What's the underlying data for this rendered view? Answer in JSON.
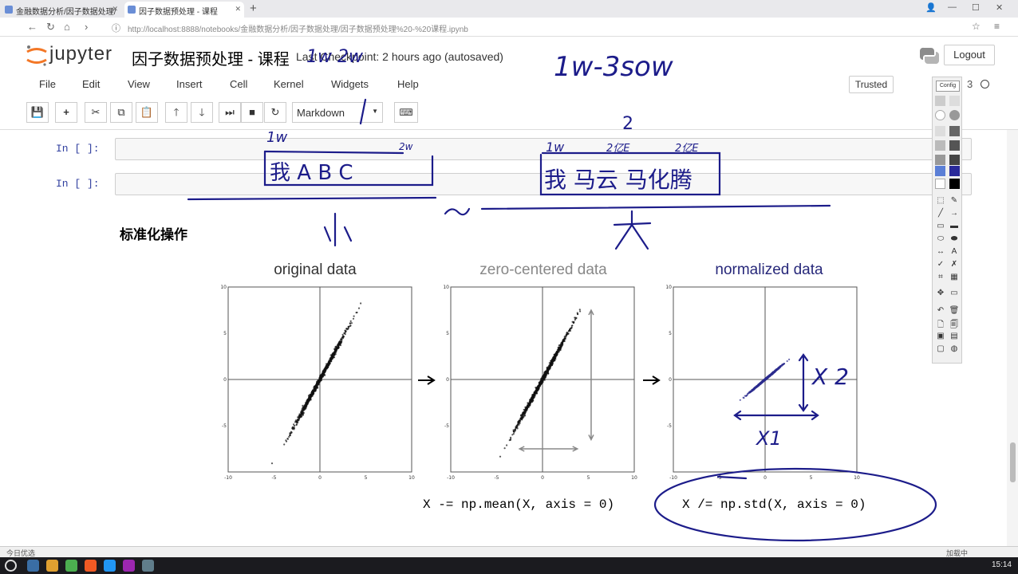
{
  "browser": {
    "tabs": [
      {
        "label": "金融数据分析/因子数据处理/"
      },
      {
        "label": "因子数据预处理 - 课程"
      }
    ],
    "url": "http://localhost:8888/notebooks/金融数据分析/因子数据处理/因子数据预处理%20-%20课程.ipynb"
  },
  "header": {
    "logo_text": "jupyter",
    "notebook_title": "因子数据预处理 - 课程",
    "checkpoint": "Last Checkpoint: 2 hours ago (autosaved)",
    "logout_label": "Logout"
  },
  "menu": {
    "items": [
      "File",
      "Edit",
      "View",
      "Insert",
      "Cell",
      "Kernel",
      "Widgets",
      "Help"
    ],
    "trusted_label": "Trusted",
    "kernel_label": "3"
  },
  "toolbar": {
    "cell_type": "Markdown"
  },
  "cells": [
    {
      "prompt": "In [ ]:"
    },
    {
      "prompt": "In [ ]:"
    }
  ],
  "markdown": {
    "heading": "标准化操作"
  },
  "figure": {
    "panels": [
      {
        "title": "original data",
        "color": "#333333"
      },
      {
        "title": "zero-centered data",
        "color": "#888888"
      },
      {
        "title": "normalized data",
        "color": "#27287a"
      }
    ],
    "tick_labels": [
      "-10",
      "-5",
      "0",
      "5",
      "10"
    ],
    "code_left": "X -= np.mean(X, axis = 0)",
    "code_right": "X /= np.std(X, axis = 0)"
  },
  "chart_data": [
    {
      "type": "scatter",
      "title": "original data",
      "xlim": [
        -10,
        10
      ],
      "ylim": [
        -10,
        10
      ],
      "cluster_center": [
        0,
        0
      ],
      "direction": "positive diagonal"
    },
    {
      "type": "scatter",
      "title": "zero-centered data",
      "xlim": [
        -10,
        10
      ],
      "ylim": [
        -10,
        10
      ],
      "cluster_center": [
        0,
        0
      ],
      "direction": "positive diagonal"
    },
    {
      "type": "scatter",
      "title": "normalized data",
      "xlim": [
        -10,
        10
      ],
      "ylim": [
        -10,
        10
      ],
      "cluster_center": [
        0,
        0
      ],
      "direction": "positive diagonal"
    }
  ],
  "annotations": {
    "top_note": "1w-3sow",
    "top_small": "1w 2w",
    "cell1_left": "1w",
    "cell1_tag": "2w",
    "cell1_box": "我 A B C",
    "cell2_num": "2",
    "cell2_a": "1w",
    "cell2_b": "2亿E",
    "cell2_c": "2亿E",
    "cell2_box": "我 马云 马化腾",
    "small_char": "小",
    "big_char": "大",
    "mid_mark": "~",
    "x2": "X 2",
    "x1": "X1"
  },
  "statusbar": {
    "left": "今日优选",
    "right": "加载中"
  },
  "taskbar": {
    "clock": "15:14"
  }
}
